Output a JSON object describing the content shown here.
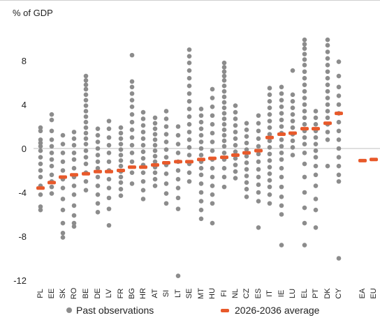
{
  "chart_data": {
    "type": "scatter",
    "unit_label": "% of GDP",
    "ylim": [
      -12,
      10
    ],
    "yticks": [
      8,
      4,
      0,
      -4,
      -8,
      -12
    ],
    "ytick_labels": [
      "8",
      "4",
      "0",
      "-4",
      "-8",
      "-12"
    ],
    "colors": {
      "observations": "#8c8c8c",
      "average": "#e8592a",
      "text": "#222222",
      "axis": "#bfbfbf"
    },
    "categories": [
      "PL",
      "EE",
      "SK",
      "RO",
      "BE",
      "DE",
      "LV",
      "FR",
      "BG",
      "HR",
      "AT",
      "SI",
      "LT",
      "SE",
      "MT",
      "HU",
      "FI",
      "NL",
      "CZ",
      "ES",
      "IT",
      "IE",
      "LU",
      "EL",
      "PT",
      "DK",
      "CY",
      "EA",
      "EU"
    ],
    "series": [
      {
        "name": "Past observations",
        "marker": "circle",
        "values": [
          [
            1.9,
            1.6,
            0.8,
            0.5,
            0.2,
            -0.2,
            -0.8,
            -1.4,
            -2.0,
            -2.6,
            -3.4,
            -4.2,
            -5.3,
            -5.6
          ],
          [
            3.1,
            2.6,
            1.6,
            0.8,
            0.2,
            -0.4,
            -1.0,
            -1.6,
            -2.4,
            -3.0,
            -3.5,
            -4.1
          ],
          [
            1.2,
            0.4,
            -0.4,
            -1.2,
            -2.0,
            -2.8,
            -3.6,
            -4.6,
            -5.6,
            -6.8,
            -7.7,
            -8.1
          ],
          [
            1.5,
            0.9,
            0.3,
            -0.4,
            -1.0,
            -1.8,
            -2.6,
            -3.4,
            -4.2,
            -5.2,
            -6.1,
            -6.8,
            -7.1
          ],
          [
            6.6,
            6.2,
            5.8,
            5.4,
            4.9,
            4.4,
            3.9,
            3.4,
            2.9,
            2.4,
            1.9,
            1.4,
            0.9,
            0.4,
            -0.2,
            -0.8,
            -1.4,
            -2.2,
            -3.0,
            -3.8
          ],
          [
            1.8,
            1.2,
            0.6,
            0.0,
            -0.6,
            -1.2,
            -1.8,
            -2.6,
            -3.4,
            -4.2,
            -5.0,
            -5.8
          ],
          [
            2.5,
            1.8,
            1.0,
            0.3,
            -0.4,
            -1.2,
            -2.0,
            -2.8,
            -3.6,
            -4.5,
            -5.5,
            -7.0
          ],
          [
            1.9,
            1.4,
            0.9,
            0.4,
            -0.1,
            -0.6,
            -1.1,
            -1.6,
            -2.1,
            -2.6,
            -3.1,
            -3.7,
            -4.3
          ],
          [
            8.5,
            6.1,
            5.6,
            5.0,
            4.4,
            3.8,
            3.1,
            2.4,
            1.7,
            1.0,
            0.3,
            -0.4,
            -1.2,
            -2.2,
            -3.2
          ],
          [
            3.3,
            2.7,
            2.1,
            1.5,
            0.9,
            0.3,
            -0.3,
            -0.9,
            -1.5,
            -2.2,
            -3.0,
            -3.8,
            -4.6
          ],
          [
            2.8,
            2.3,
            1.8,
            1.3,
            0.8,
            0.3,
            -0.2,
            -0.7,
            -1.2,
            -1.7,
            -2.2,
            -2.8,
            -3.4
          ],
          [
            3.4,
            2.7,
            2.0,
            1.3,
            0.6,
            -0.1,
            -0.8,
            -1.5,
            -2.3,
            -3.2,
            -4.1,
            -5.0
          ],
          [
            2.0,
            1.2,
            0.4,
            -0.4,
            -1.2,
            -2.0,
            -2.8,
            -3.6,
            -4.5,
            -5.5,
            -11.6
          ],
          [
            9.0,
            8.4,
            7.8,
            7.1,
            6.4,
            5.7,
            5.0,
            4.3,
            3.6,
            2.9,
            2.2,
            1.5,
            0.8,
            0.1,
            -0.6,
            -1.4,
            -2.2,
            -3.0
          ],
          [
            3.6,
            3.0,
            2.4,
            1.8,
            1.2,
            0.6,
            0.0,
            -0.6,
            -1.2,
            -1.8,
            -2.4,
            -3.2,
            -4.0,
            -4.8,
            -5.6,
            -6.4
          ],
          [
            5.4,
            4.6,
            3.8,
            3.0,
            2.2,
            1.4,
            0.6,
            -0.2,
            -1.0,
            -1.8,
            -2.6,
            -3.4,
            -4.2,
            -5.0,
            -6.8
          ],
          [
            7.8,
            7.4,
            7.0,
            6.6,
            6.2,
            5.7,
            5.2,
            4.7,
            4.2,
            3.7,
            3.2,
            2.7,
            2.2,
            1.7,
            1.2,
            0.7,
            0.2,
            -0.4,
            -1.0,
            -1.8,
            -2.6,
            -3.5
          ],
          [
            3.9,
            3.3,
            2.7,
            2.1,
            1.5,
            0.9,
            0.3,
            -0.3,
            -0.9,
            -1.5,
            -2.1,
            -2.7
          ],
          [
            2.3,
            1.7,
            1.1,
            0.5,
            -0.1,
            -0.7,
            -1.3,
            -1.9,
            -2.5,
            -3.1,
            -3.7,
            -4.4
          ],
          [
            3.0,
            2.3,
            1.6,
            0.9,
            0.2,
            -0.5,
            -1.2,
            -1.9,
            -2.6,
            -3.3,
            -4.0,
            -4.8,
            -7.2
          ],
          [
            5.5,
            4.9,
            4.3,
            3.7,
            3.1,
            2.5,
            1.9,
            1.3,
            0.7,
            0.1,
            -0.5,
            -1.1,
            -1.7,
            -2.3,
            -2.9,
            -3.5,
            -4.2,
            -5.0
          ],
          [
            5.6,
            5.0,
            4.4,
            3.8,
            3.2,
            2.6,
            2.0,
            1.4,
            0.8,
            0.2,
            -0.4,
            -1.0,
            -1.8,
            -2.6,
            -3.5,
            -4.4,
            -5.2,
            -6.0,
            -8.8
          ],
          [
            7.1,
            4.9,
            4.3,
            3.7,
            3.1,
            2.5,
            1.9,
            1.3,
            0.7,
            0.1,
            -0.6
          ],
          [
            9.9,
            9.5,
            9.1,
            8.6,
            8.1,
            7.6,
            7.0,
            6.4,
            5.8,
            5.2,
            4.6,
            4.0,
            3.4,
            2.8,
            2.2,
            1.6,
            1.0,
            0.4,
            -0.4,
            -1.4,
            -2.6,
            -4.0,
            -5.4,
            -6.8,
            -8.8
          ],
          [
            3.4,
            2.8,
            2.2,
            1.6,
            1.0,
            0.4,
            -0.2,
            -0.8,
            -1.6,
            -2.4,
            -3.4,
            -4.6,
            -5.6,
            -7.2
          ],
          [
            9.9,
            9.4,
            8.8,
            8.2,
            7.6,
            7.0,
            6.4,
            5.8,
            5.2,
            4.6,
            4.0,
            3.4,
            2.8,
            2.2,
            1.5,
            0.8,
            -1.6
          ],
          [
            7.9,
            6.6,
            5.6,
            4.8,
            4.0,
            3.2,
            2.4,
            1.6,
            0.8,
            0.0,
            -0.8,
            -1.6,
            -2.4,
            -3.0,
            -10.0
          ]
        ]
      },
      {
        "name": "2026-2036 average",
        "marker": "dash",
        "values": [
          -3.6,
          -3.1,
          -2.6,
          -2.4,
          -2.3,
          -2.1,
          -2.1,
          -2.0,
          -1.7,
          -1.7,
          -1.5,
          -1.3,
          -1.2,
          -1.2,
          -1.0,
          -0.9,
          -0.8,
          -0.6,
          -0.4,
          -0.2,
          1.0,
          1.3,
          1.4,
          1.8,
          1.8,
          2.3,
          3.2,
          -1.1,
          -1.0
        ]
      }
    ]
  }
}
